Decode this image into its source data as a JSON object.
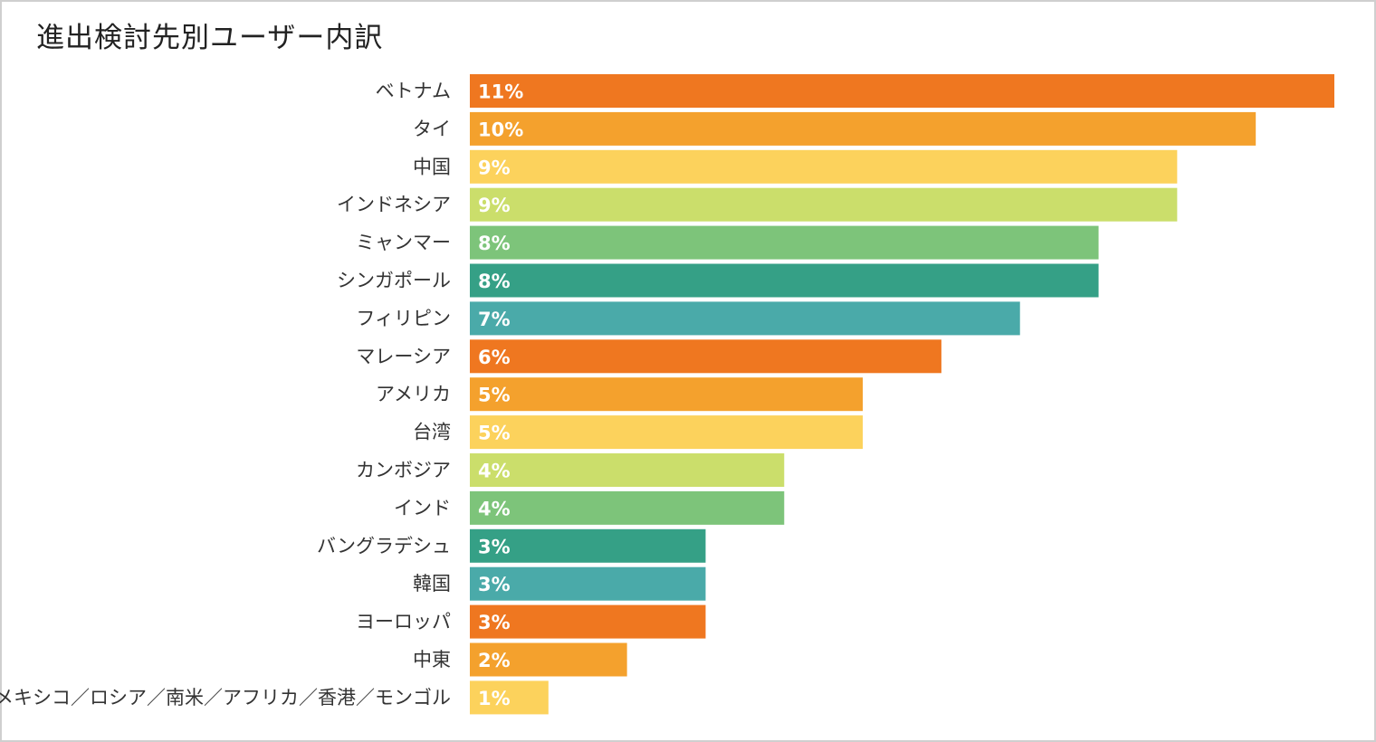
{
  "chart_data": {
    "type": "bar",
    "orientation": "horizontal",
    "title": "進出検討先別ユーザー内訳",
    "xlabel": "",
    "ylabel": "",
    "categories": [
      "ベトナム",
      "タイ",
      "中国",
      "インドネシア",
      "ミャンマー",
      "シンガポール",
      "フィリピン",
      "マレーシア",
      "アメリカ",
      "台湾",
      "カンボジア",
      "インド",
      "バングラデシュ",
      "韓国",
      "ヨーロッパ",
      "中東",
      "メキシコ／ロシア／南米／アフリカ／香港／モンゴル"
    ],
    "values": [
      11,
      10,
      9,
      9,
      8,
      8,
      7,
      6,
      5,
      5,
      4,
      4,
      3,
      3,
      3,
      2,
      1
    ],
    "value_labels": [
      "11%",
      "10%",
      "9%",
      "9%",
      "8%",
      "8%",
      "7%",
      "6%",
      "5%",
      "5%",
      "4%",
      "4%",
      "3%",
      "3%",
      "3%",
      "2%",
      "1%"
    ],
    "xlim": [
      0,
      11
    ],
    "grid": false,
    "legend": "none",
    "colors": [
      "#ef7720",
      "#f4a12d",
      "#fcd25c",
      "#cbde6b",
      "#7dc47a",
      "#35a086",
      "#4aaaa9",
      "#ef7720",
      "#f4a12d",
      "#fcd25c",
      "#cbde6b",
      "#7dc47a",
      "#35a086",
      "#4aaaa9",
      "#ef7720",
      "#f4a12d",
      "#fcd25c"
    ]
  }
}
